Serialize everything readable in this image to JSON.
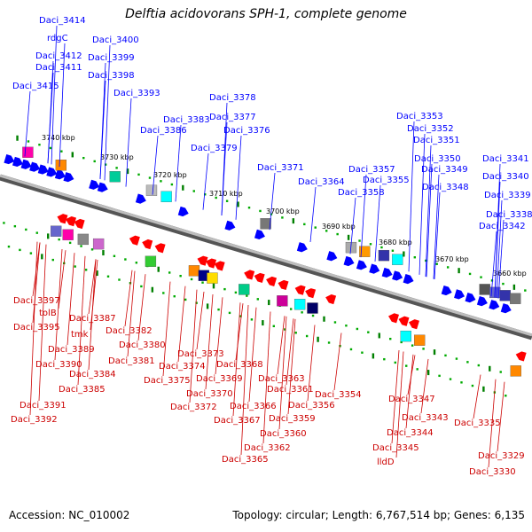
{
  "title": "Delftia acidovorans SPH-1, complete genome",
  "footer": {
    "accession": "Accession: NC_010002",
    "topology": "Topology: circular; Length: 6,767,514 bp; Genes: 6,135"
  },
  "colors": {
    "forward": "#0000ff",
    "reverse": "#ff0000",
    "backbone": "#808080",
    "tick_major": "#008000",
    "tick_minor": "#00aa00",
    "label_forward": "#0000ff",
    "label_reverse": "#cc0000"
  },
  "scale_labels": [
    "3740 kbp",
    "3730 kbp",
    "3720 kbp",
    "3710 kbp",
    "3700 kbp",
    "3690 kbp",
    "3680 kbp",
    "3670 kbp",
    "3660 kbp"
  ],
  "labels_top": [
    "Daci_3414",
    "rdgC",
    "Daci_3412",
    "Daci_3411",
    "Daci_3415",
    "Daci_3400",
    "Daci_3399",
    "Daci_3398",
    "Daci_3393",
    "Daci_3378",
    "Daci_3383",
    "Daci_3377",
    "Daci_3386",
    "Daci_3376",
    "Daci_3379",
    "Daci_3371",
    "Daci_3364",
    "Daci_3357",
    "Daci_3355",
    "Daci_3358",
    "Daci_3353",
    "Daci_3352",
    "Daci_3351",
    "Daci_3350",
    "Daci_3349",
    "Daci_3348",
    "Daci_3341",
    "Daci_3340",
    "Daci_3339",
    "Daci_3338",
    "Daci_3342"
  ],
  "labels_bottom": [
    "Daci_3397",
    "tolB",
    "Daci_3395",
    "Daci_3387",
    "tmk",
    "Daci_3389",
    "Daci_3390",
    "Daci_3384",
    "Daci_3385",
    "Daci_3391",
    "Daci_3392",
    "Daci_3382",
    "Daci_3380",
    "Daci_3381",
    "Daci_3373",
    "Daci_3374",
    "Daci_3375",
    "Daci_3369",
    "Daci_3370",
    "Daci_3372",
    "Daci_3368",
    "Daci_3363",
    "Daci_3361",
    "Daci_3366",
    "Daci_3367",
    "Daci_3359",
    "Daci_3360",
    "Daci_3362",
    "Daci_3365",
    "Daci_3354",
    "Daci_3356",
    "Daci_3347",
    "Daci_3343",
    "Daci_3344",
    "Daci_3345",
    "lldD",
    "Daci_3335",
    "Daci_3329",
    "Daci_3330"
  ]
}
